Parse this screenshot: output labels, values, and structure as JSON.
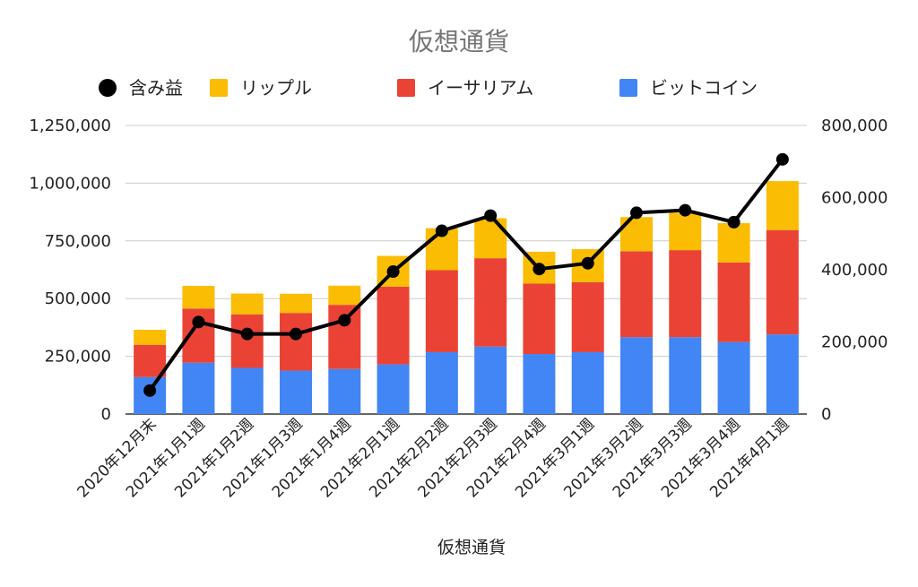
{
  "chart_data": {
    "type": "bar",
    "stacked": true,
    "title": "仮想通貨",
    "xlabel": "仮想通貨",
    "ylabel": "",
    "ylim": [
      0,
      1250000
    ],
    "y2lim": [
      0,
      800000
    ],
    "yticks": [
      "0",
      "250,000",
      "500,000",
      "750,000",
      "1,000,000",
      "1,250,000"
    ],
    "y2ticks": [
      "0",
      "200,000",
      "400,000",
      "600,000",
      "800,000"
    ],
    "grid": true,
    "legend_position": "top",
    "categories": [
      "2020年12月末",
      "2021年1月1週",
      "2021年1月2週",
      "2021年1月3週",
      "2021年1月4週",
      "2021年2月1週",
      "2021年2月2週",
      "2021年2月3週",
      "2021年2月4週",
      "2021年3月1週",
      "2021年3月2週",
      "2021年3月3週",
      "2021年3月4週",
      "2021年4月1週"
    ],
    "series": [
      {
        "name": "ビットコイン",
        "type": "bar",
        "axis": "left",
        "color": "#4285F4",
        "values": [
          160000,
          222000,
          200000,
          188000,
          195000,
          215000,
          268000,
          292000,
          260000,
          268000,
          333000,
          333000,
          312000,
          345000
        ]
      },
      {
        "name": "イーサリアム",
        "type": "bar",
        "axis": "left",
        "color": "#EA4335",
        "values": [
          140000,
          235000,
          232000,
          250000,
          278000,
          337000,
          355000,
          383000,
          305000,
          303000,
          372000,
          377000,
          345000,
          452000
        ]
      },
      {
        "name": "リップル",
        "type": "bar",
        "axis": "left",
        "color": "#FBBC04",
        "values": [
          65000,
          98000,
          90000,
          83000,
          83000,
          133000,
          182000,
          173000,
          138000,
          143000,
          148000,
          162000,
          170000,
          212000
        ]
      },
      {
        "name": "含み益",
        "type": "line",
        "axis": "right",
        "color": "#000000",
        "values": [
          65000,
          255000,
          222000,
          222000,
          260000,
          395000,
          508000,
          550000,
          402000,
          418000,
          558000,
          565000,
          532000,
          706000
        ]
      }
    ]
  }
}
